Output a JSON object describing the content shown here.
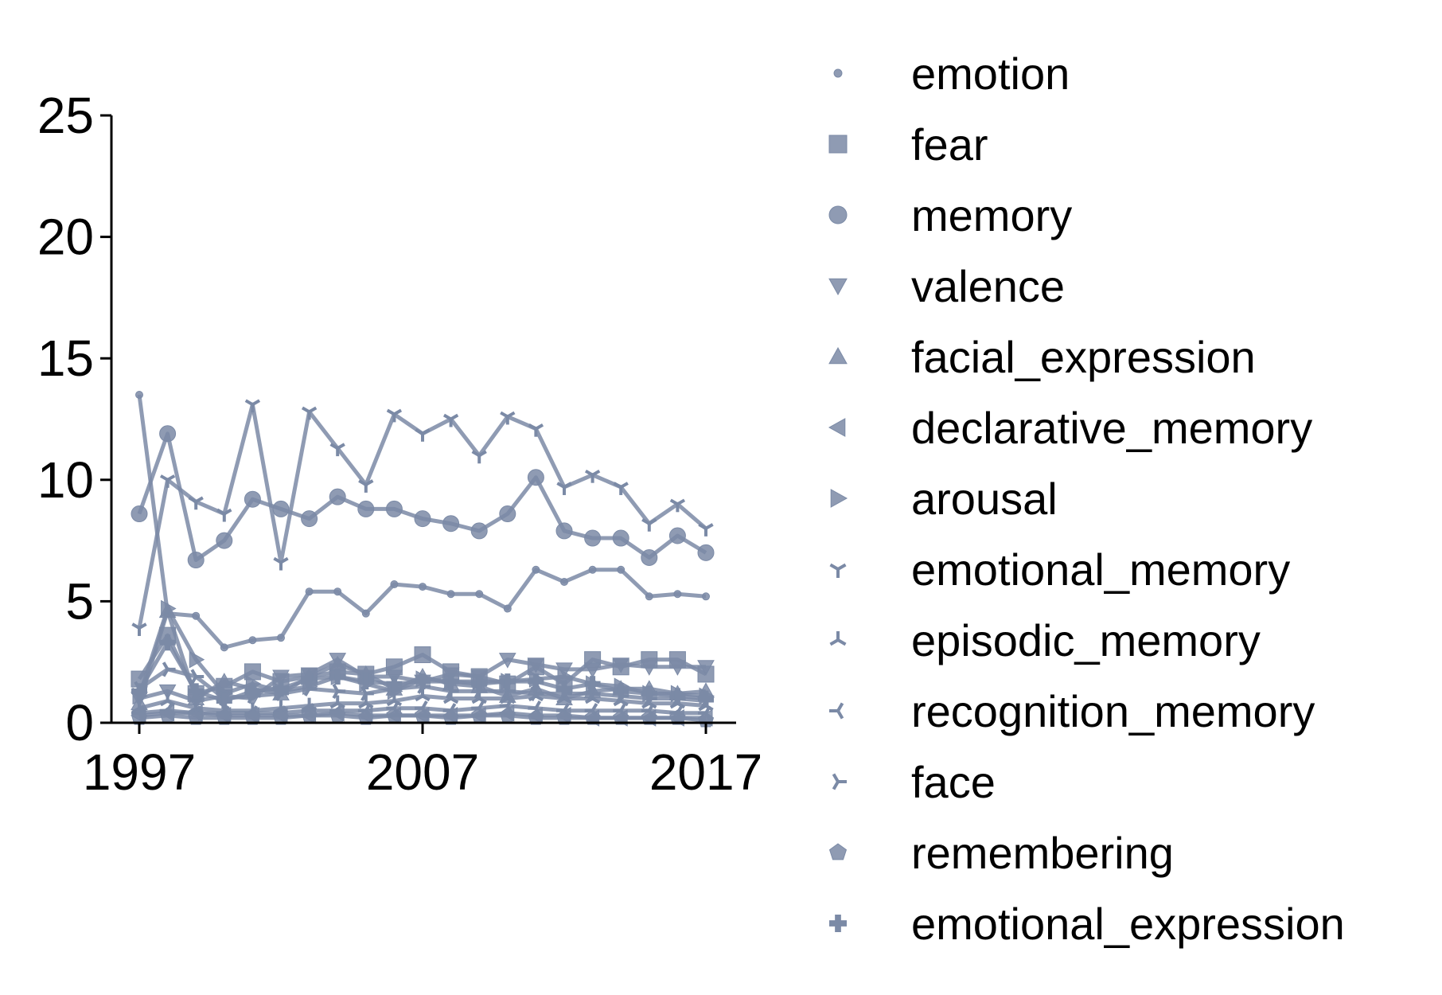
{
  "chart_data": {
    "type": "line",
    "title": "",
    "xlabel": "",
    "ylabel": "",
    "xlim": [
      1996,
      2018
    ],
    "ylim": [
      0,
      25
    ],
    "x_ticks": [
      1997,
      2007,
      2017
    ],
    "y_ticks": [
      0,
      5,
      10,
      15,
      20,
      25
    ],
    "grid": false,
    "legend_placement": "right",
    "color": "#7b8aa6",
    "x": [
      1997,
      1998,
      1999,
      2000,
      2001,
      2002,
      2003,
      2004,
      2005,
      2006,
      2007,
      2008,
      2009,
      2010,
      2011,
      2012,
      2013,
      2014,
      2015,
      2016,
      2017
    ],
    "series": [
      {
        "name": "emotion",
        "marker": "point",
        "values": [
          13.5,
          4.5,
          4.4,
          3.1,
          3.4,
          3.5,
          5.4,
          5.4,
          4.5,
          5.7,
          5.6,
          5.3,
          5.3,
          4.7,
          6.3,
          5.8,
          6.3,
          6.3,
          5.2,
          5.3,
          5.2
        ]
      },
      {
        "name": "fear",
        "marker": "square",
        "values": [
          1.8,
          3.6,
          1.2,
          1.5,
          2.1,
          1.7,
          1.9,
          2.1,
          2.0,
          2.3,
          2.8,
          2.1,
          1.9,
          1.6,
          2.3,
          1.6,
          2.6,
          2.3,
          2.6,
          2.6,
          2.0
        ]
      },
      {
        "name": "memory",
        "marker": "circle",
        "values": [
          8.6,
          11.9,
          6.7,
          7.5,
          9.2,
          8.8,
          8.4,
          9.3,
          8.8,
          8.8,
          8.4,
          8.2,
          7.9,
          8.6,
          10.1,
          7.9,
          7.6,
          7.6,
          6.8,
          7.7,
          7.0
        ]
      },
      {
        "name": "valence",
        "marker": "triangle-down",
        "values": [
          1.0,
          1.3,
          0.9,
          1.1,
          1.0,
          1.9,
          2.0,
          2.6,
          1.9,
          1.9,
          1.7,
          2.0,
          1.9,
          2.6,
          2.4,
          2.2,
          2.2,
          2.4,
          2.3,
          2.3,
          2.3
        ]
      },
      {
        "name": "facial_expression",
        "marker": "triangle-up",
        "values": [
          0.8,
          4.6,
          1.0,
          1.7,
          1.4,
          1.2,
          1.9,
          2.4,
          2.0,
          1.4,
          1.9,
          1.6,
          1.5,
          1.1,
          1.4,
          1.0,
          1.3,
          1.4,
          1.4,
          1.2,
          1.3
        ]
      },
      {
        "name": "declarative_memory",
        "marker": "triangle-left",
        "values": [
          0.3,
          0.4,
          0.4,
          0.3,
          0.3,
          0.3,
          0.3,
          0.4,
          0.3,
          0.3,
          0.3,
          0.3,
          0.3,
          0.4,
          0.3,
          0.3,
          0.2,
          0.2,
          0.2,
          0.2,
          0.2
        ]
      },
      {
        "name": "arousal",
        "marker": "triangle-right",
        "values": [
          1.1,
          4.7,
          2.6,
          1.2,
          1.6,
          1.3,
          1.5,
          1.9,
          1.6,
          1.3,
          1.8,
          1.7,
          1.7,
          1.7,
          1.8,
          1.9,
          1.6,
          1.5,
          1.2,
          1.2,
          1.1
        ]
      },
      {
        "name": "emotional_memory",
        "marker": "tri-down",
        "values": [
          3.9,
          10.0,
          9.1,
          8.6,
          13.1,
          6.6,
          12.8,
          11.3,
          9.8,
          12.7,
          11.9,
          12.5,
          11.0,
          12.6,
          12.1,
          9.7,
          10.2,
          9.7,
          8.2,
          9.0,
          8.0
        ]
      },
      {
        "name": "episodic_memory",
        "marker": "tri-up",
        "values": [
          0.6,
          0.9,
          0.6,
          0.5,
          0.5,
          0.6,
          0.7,
          0.8,
          0.8,
          0.9,
          1.1,
          1.0,
          1.0,
          1.0,
          1.1,
          1.0,
          1.0,
          0.9,
          0.8,
          0.8,
          0.7
        ]
      },
      {
        "name": "recognition_memory",
        "marker": "tri-left",
        "values": [
          0.4,
          0.5,
          0.4,
          0.4,
          0.4,
          0.4,
          0.5,
          0.5,
          0.5,
          0.6,
          0.6,
          0.5,
          0.6,
          0.7,
          0.6,
          0.5,
          0.5,
          0.5,
          0.5,
          0.4,
          0.4
        ]
      },
      {
        "name": "face",
        "marker": "tri-right",
        "values": [
          1.4,
          2.2,
          1.9,
          1.0,
          1.1,
          1.2,
          1.4,
          1.3,
          1.2,
          1.4,
          1.5,
          1.3,
          1.3,
          1.3,
          1.2,
          1.2,
          1.2,
          1.1,
          1.0,
          1.0,
          0.9
        ]
      },
      {
        "name": "remembering",
        "marker": "pentagon",
        "values": [
          0.2,
          0.3,
          0.2,
          0.2,
          0.2,
          0.2,
          0.3,
          0.3,
          0.2,
          0.3,
          0.3,
          0.2,
          0.3,
          0.3,
          0.2,
          0.2,
          0.2,
          0.2,
          0.2,
          0.2,
          0.1
        ]
      },
      {
        "name": "emotional_expression",
        "marker": "plus",
        "values": [
          1.3,
          3.3,
          1.3,
          0.9,
          1.3,
          1.4,
          1.8,
          1.9,
          1.7,
          1.6,
          1.7,
          1.7,
          1.6,
          1.7,
          1.7,
          1.4,
          1.6,
          1.3,
          1.2,
          1.1,
          1.0
        ]
      }
    ]
  }
}
